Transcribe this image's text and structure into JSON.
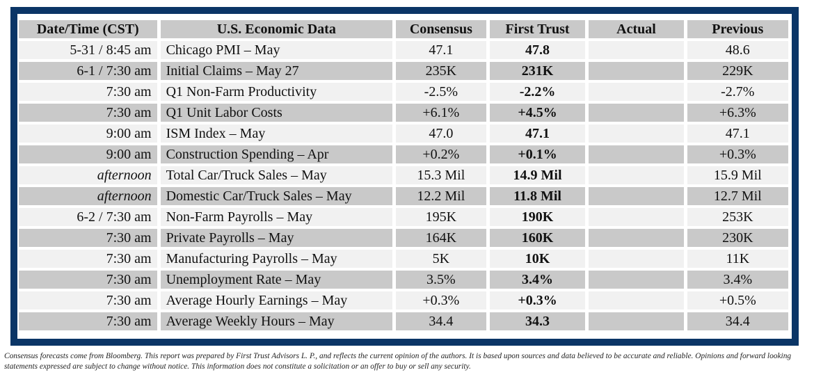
{
  "columns": [
    "Date/Time (CST)",
    "U.S. Economic Data",
    "Consensus",
    "First Trust",
    "Actual",
    "Previous"
  ],
  "rows": [
    {
      "date": "5-31 / 8:45 am",
      "date_italic": false,
      "event": "Chicago PMI – May",
      "consensus": "47.1",
      "first_trust": "47.8",
      "actual": "",
      "previous": "48.6"
    },
    {
      "date": "6-1 / 7:30 am",
      "date_italic": false,
      "event": "Initial Claims – May 27",
      "consensus": "235K",
      "first_trust": "231K",
      "actual": "",
      "previous": "229K"
    },
    {
      "date": "7:30 am",
      "date_italic": false,
      "event": "Q1 Non-Farm Productivity",
      "consensus": "-2.5%",
      "first_trust": "-2.2%",
      "actual": "",
      "previous": "-2.7%"
    },
    {
      "date": "7:30 am",
      "date_italic": false,
      "event": "Q1 Unit Labor Costs",
      "consensus": "+6.1%",
      "first_trust": "+4.5%",
      "actual": "",
      "previous": "+6.3%"
    },
    {
      "date": "9:00 am",
      "date_italic": false,
      "event": "ISM Index – May",
      "consensus": "47.0",
      "first_trust": "47.1",
      "actual": "",
      "previous": "47.1"
    },
    {
      "date": "9:00 am",
      "date_italic": false,
      "event": "Construction Spending – Apr",
      "consensus": "+0.2%",
      "first_trust": "+0.1%",
      "actual": "",
      "previous": "+0.3%"
    },
    {
      "date": "afternoon",
      "date_italic": true,
      "event": "Total Car/Truck Sales – May",
      "consensus": "15.3 Mil",
      "first_trust": "14.9 Mil",
      "actual": "",
      "previous": "15.9 Mil"
    },
    {
      "date": "afternoon",
      "date_italic": true,
      "event": "Domestic Car/Truck Sales – May",
      "consensus": "12.2 Mil",
      "first_trust": "11.8 Mil",
      "actual": "",
      "previous": "12.7 Mil"
    },
    {
      "date": "6-2 / 7:30 am",
      "date_italic": false,
      "event": "Non-Farm Payrolls – May",
      "consensus": "195K",
      "first_trust": "190K",
      "actual": "",
      "previous": "253K"
    },
    {
      "date": "7:30 am",
      "date_italic": false,
      "event": "Private Payrolls – May",
      "consensus": "164K",
      "first_trust": "160K",
      "actual": "",
      "previous": "230K"
    },
    {
      "date": "7:30 am",
      "date_italic": false,
      "event": "Manufacturing Payrolls – May",
      "consensus": "5K",
      "first_trust": "10K",
      "actual": "",
      "previous": "11K"
    },
    {
      "date": "7:30 am",
      "date_italic": false,
      "event": "Unemployment Rate – May",
      "consensus": "3.5%",
      "first_trust": "3.4%",
      "actual": "",
      "previous": "3.4%"
    },
    {
      "date": "7:30 am",
      "date_italic": false,
      "event": "Average Hourly Earnings – May",
      "consensus": "+0.3%",
      "first_trust": "+0.3%",
      "actual": "",
      "previous": "+0.5%"
    },
    {
      "date": "7:30 am",
      "date_italic": false,
      "event": "Average Weekly Hours – May",
      "consensus": "34.4",
      "first_trust": "34.3",
      "actual": "",
      "previous": "34.4"
    }
  ],
  "footnote": "Consensus forecasts come from Bloomberg.  This report was prepared by First Trust Advisors L. P., and reflects the current opinion of the authors.  It is based upon sources and data believed to be accurate and reliable.  Opinions and forward looking statements expressed are subject to change without notice.  This information does not constitute a solicitation or an offer to buy or sell any security.",
  "colors": {
    "frame": "#0b3566",
    "header_bg": "#c9c9c9",
    "row_light": "#f1f1f1",
    "row_dark": "#c9c9c9"
  }
}
